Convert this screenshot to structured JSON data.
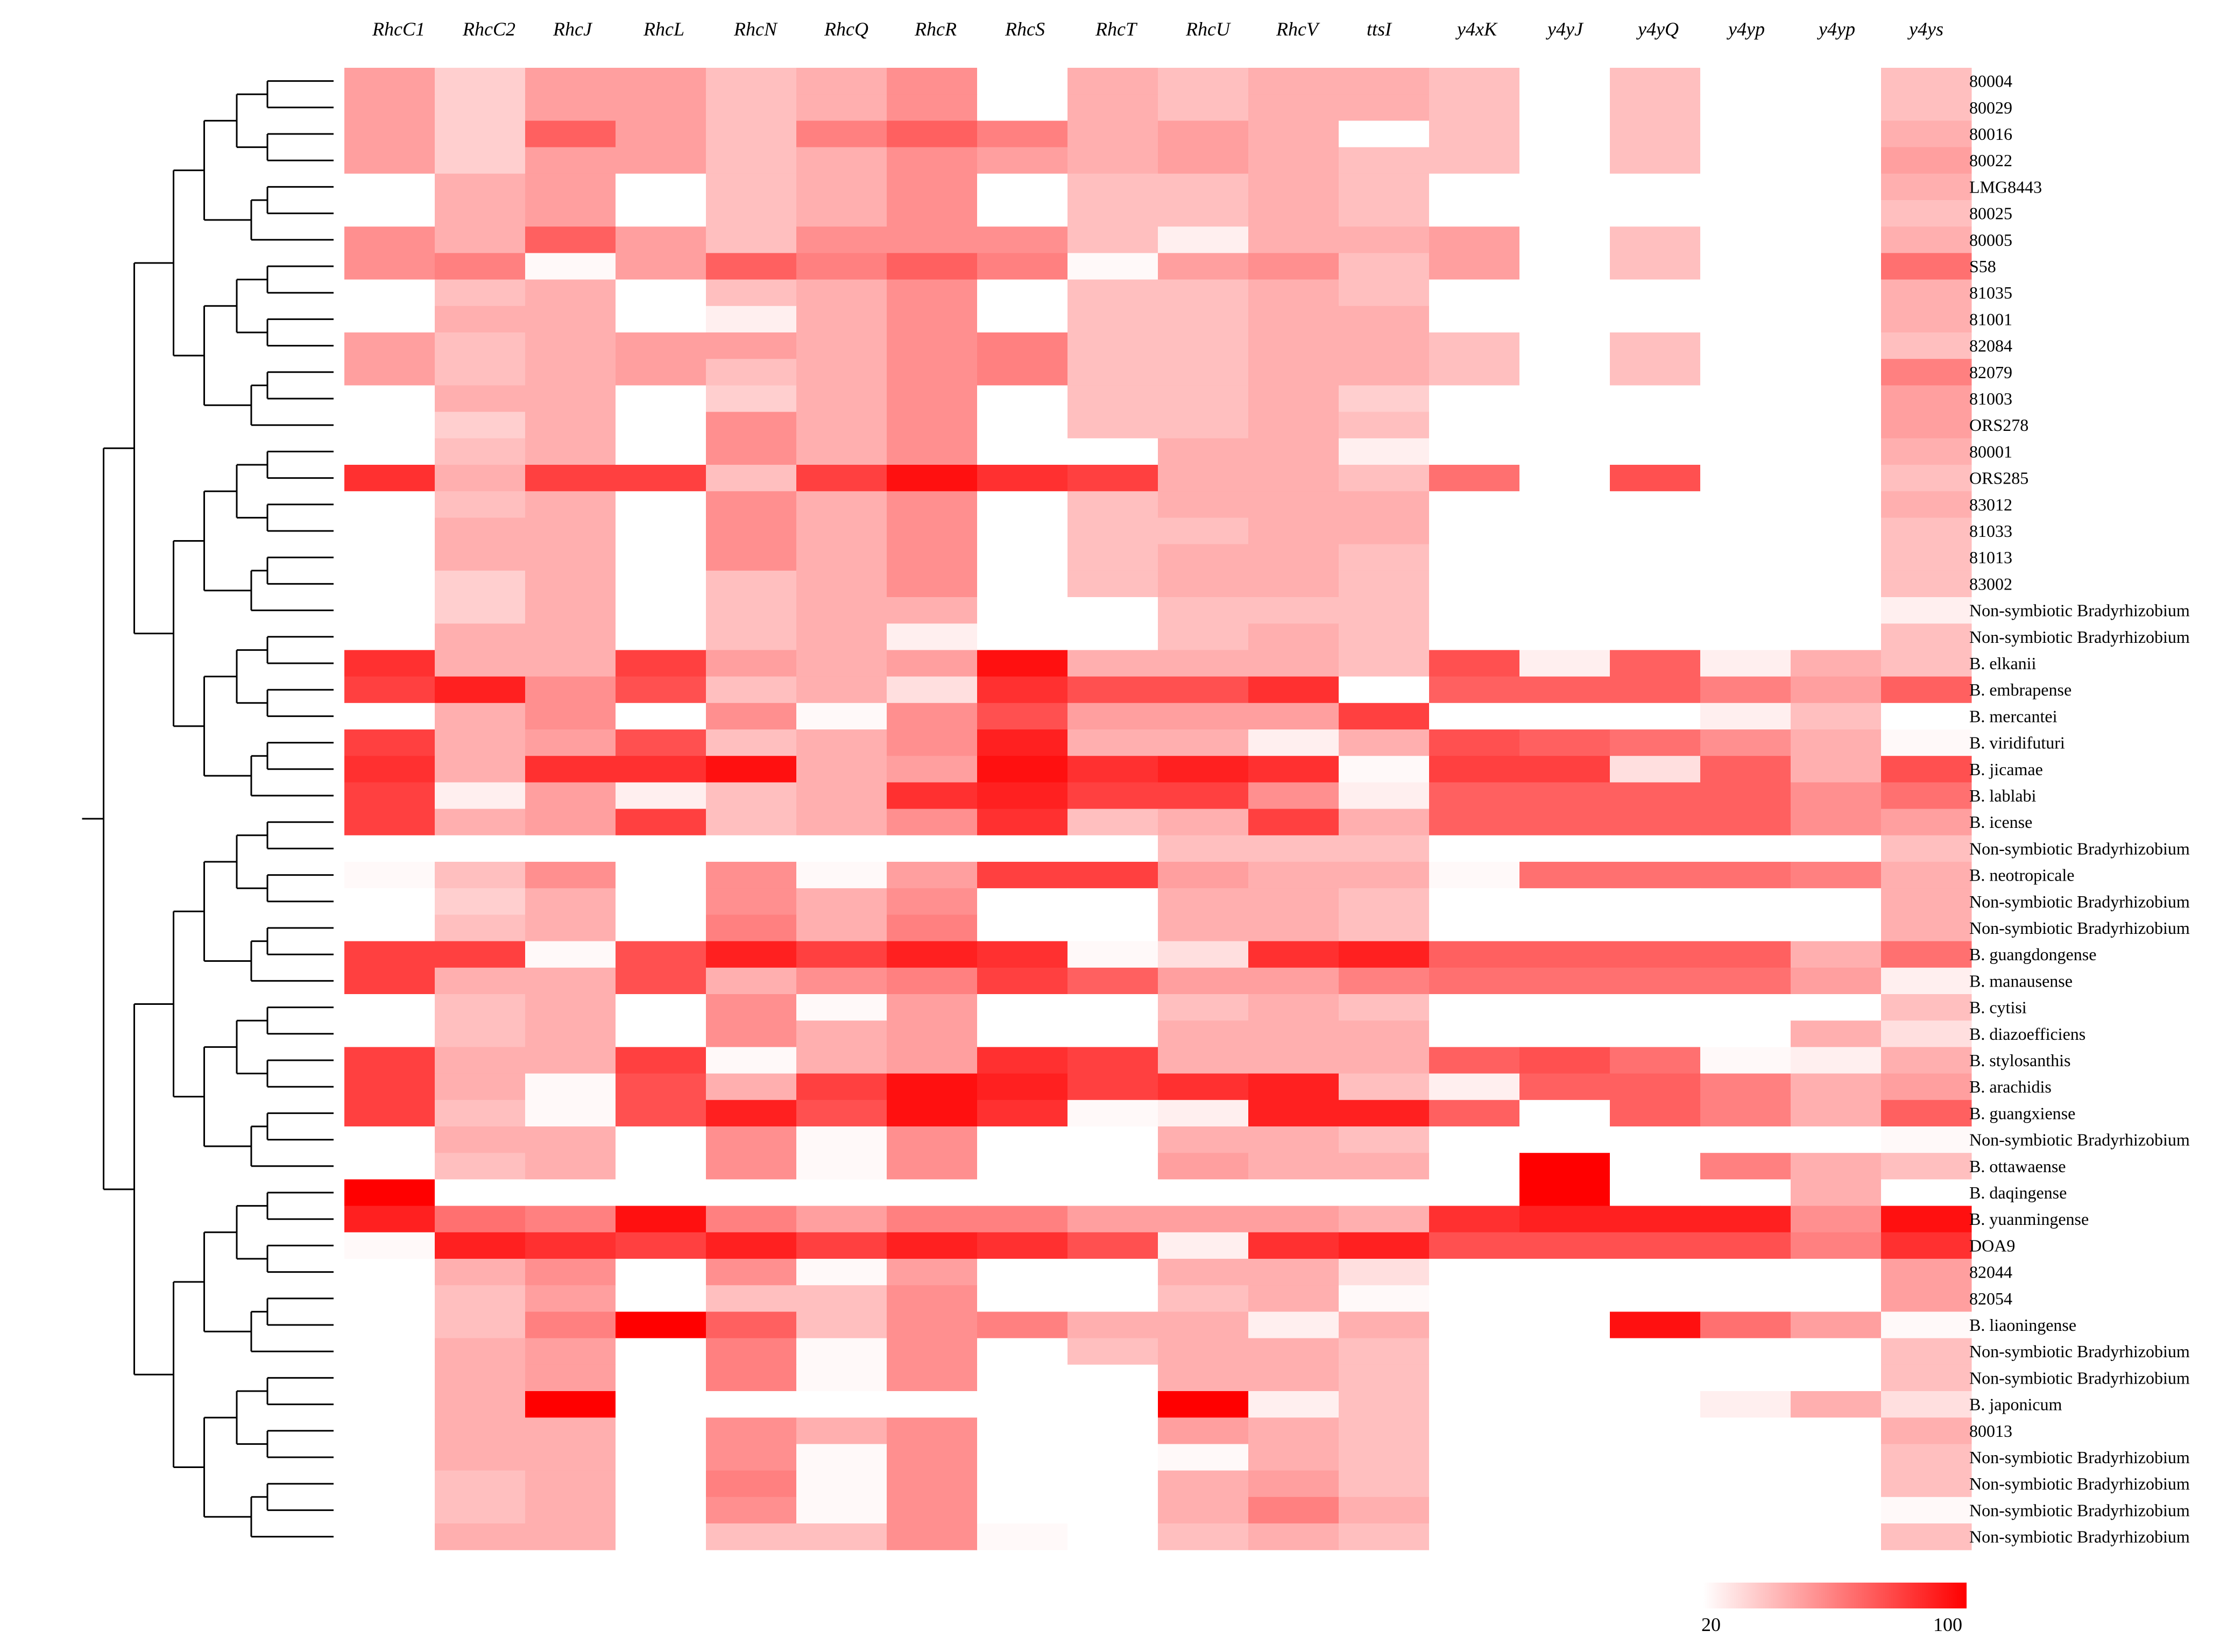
{
  "chart_data": {
    "type": "heatmap",
    "columns": [
      "RhcC1",
      "RhcC2",
      "RhcJ",
      "RhcL",
      "RhcN",
      "RhcQ",
      "RhcR",
      "RhcS",
      "RhcT",
      "RhcU",
      "RhcV",
      "ttsI",
      "y4xK",
      "y4yJ",
      "y4yQ",
      "y4yp",
      "y4yp",
      "y4ys"
    ],
    "rows": [
      "80004",
      "80029",
      "80016",
      "80022",
      "LMG8443",
      "80025",
      "80005",
      "S58",
      "81035",
      "81001",
      "82084",
      "82079",
      "81003",
      "ORS278",
      "80001",
      "ORS285",
      "83012",
      "81033",
      "81013",
      "83002",
      "Non-symbiotic Bradyrhizobium",
      "Non-symbiotic Bradyrhizobium",
      "B. elkanii",
      "B. embrapense",
      "B. mercantei",
      "B. viridifuturi",
      "B. jicamae",
      "B. lablabi",
      "B. icense",
      "Non-symbiotic Bradyrhizobium",
      "B. neotropicale",
      "Non-symbiotic Bradyrhizobium",
      "Non-symbiotic Bradyrhizobium",
      "B. guangdongense",
      "B. manausense",
      "B. cytisi",
      "B. diazoefficiens",
      "B. stylosanthis",
      "B. arachidis",
      "B. guangxiense",
      "Non-symbiotic Bradyrhizobium",
      "B. ottawaense",
      "B. daqingense",
      "B. yuanmingense",
      "DOA9",
      "82044",
      "82054",
      "B. liaoningense",
      "Non-symbiotic Bradyrhizobium",
      "Non-symbiotic Bradyrhizobium",
      "B. japonicum",
      "80013",
      "Non-symbiotic Bradyrhizobium",
      "Non-symbiotic Bradyrhizobium",
      "Non-symbiotic Bradyrhizobium",
      "Non-symbiotic Bradyrhizobium"
    ],
    "values": [
      [
        50,
        35,
        50,
        50,
        40,
        45,
        55,
        20,
        45,
        40,
        45,
        45,
        40,
        null,
        40,
        null,
        null,
        40
      ],
      [
        50,
        35,
        50,
        50,
        40,
        45,
        55,
        20,
        45,
        40,
        45,
        45,
        40,
        null,
        40,
        null,
        null,
        40
      ],
      [
        50,
        35,
        70,
        50,
        40,
        60,
        70,
        60,
        45,
        50,
        45,
        20,
        40,
        null,
        40,
        null,
        null,
        45
      ],
      [
        50,
        35,
        50,
        50,
        40,
        45,
        55,
        50,
        45,
        50,
        45,
        40,
        40,
        null,
        40,
        null,
        null,
        50
      ],
      [
        null,
        45,
        50,
        null,
        40,
        45,
        55,
        null,
        40,
        40,
        45,
        40,
        null,
        null,
        null,
        null,
        null,
        45
      ],
      [
        null,
        45,
        50,
        null,
        40,
        45,
        55,
        null,
        40,
        40,
        45,
        40,
        null,
        null,
        null,
        null,
        null,
        40
      ],
      [
        55,
        45,
        70,
        50,
        40,
        55,
        55,
        55,
        40,
        25,
        45,
        45,
        50,
        null,
        40,
        null,
        null,
        45
      ],
      [
        55,
        60,
        22,
        50,
        70,
        60,
        70,
        60,
        22,
        50,
        55,
        40,
        50,
        null,
        40,
        null,
        null,
        65
      ],
      [
        null,
        40,
        45,
        null,
        40,
        45,
        55,
        null,
        40,
        40,
        45,
        40,
        null,
        null,
        null,
        null,
        null,
        45
      ],
      [
        null,
        45,
        45,
        null,
        25,
        45,
        55,
        null,
        40,
        40,
        45,
        45,
        null,
        null,
        null,
        null,
        null,
        45
      ],
      [
        50,
        40,
        45,
        50,
        50,
        45,
        55,
        60,
        40,
        40,
        45,
        45,
        40,
        null,
        40,
        null,
        null,
        40
      ],
      [
        50,
        40,
        45,
        50,
        40,
        45,
        55,
        60,
        40,
        40,
        45,
        45,
        40,
        null,
        40,
        null,
        null,
        60
      ],
      [
        null,
        45,
        45,
        null,
        35,
        45,
        55,
        null,
        40,
        40,
        45,
        35,
        null,
        null,
        null,
        null,
        null,
        50
      ],
      [
        null,
        35,
        45,
        null,
        55,
        45,
        55,
        null,
        40,
        40,
        45,
        40,
        null,
        null,
        null,
        null,
        null,
        50
      ],
      [
        null,
        40,
        45,
        null,
        55,
        45,
        55,
        null,
        null,
        45,
        45,
        25,
        null,
        null,
        null,
        null,
        null,
        45
      ],
      [
        85,
        45,
        80,
        80,
        40,
        80,
        95,
        85,
        80,
        45,
        45,
        40,
        65,
        null,
        75,
        null,
        null,
        40
      ],
      [
        null,
        40,
        45,
        null,
        55,
        45,
        55,
        null,
        40,
        45,
        45,
        45,
        null,
        null,
        null,
        null,
        null,
        45
      ],
      [
        null,
        45,
        45,
        null,
        55,
        45,
        55,
        null,
        40,
        40,
        45,
        45,
        null,
        null,
        null,
        null,
        null,
        40
      ],
      [
        null,
        45,
        45,
        null,
        55,
        45,
        55,
        null,
        40,
        45,
        45,
        40,
        null,
        null,
        null,
        null,
        null,
        40
      ],
      [
        null,
        35,
        45,
        null,
        40,
        45,
        55,
        null,
        40,
        45,
        45,
        40,
        null,
        null,
        null,
        null,
        null,
        40
      ],
      [
        null,
        35,
        45,
        null,
        40,
        45,
        45,
        null,
        null,
        40,
        40,
        40,
        null,
        null,
        null,
        null,
        null,
        25
      ],
      [
        null,
        45,
        45,
        null,
        40,
        45,
        25,
        null,
        null,
        40,
        45,
        40,
        null,
        null,
        null,
        null,
        null,
        40
      ],
      [
        85,
        45,
        45,
        80,
        50,
        45,
        50,
        95,
        45,
        45,
        45,
        40,
        75,
        25,
        70,
        25,
        45,
        40
      ],
      [
        80,
        90,
        55,
        75,
        40,
        45,
        30,
        85,
        75,
        75,
        85,
        20,
        70,
        70,
        70,
        60,
        50,
        70
      ],
      [
        null,
        45,
        55,
        null,
        55,
        22,
        55,
        75,
        50,
        50,
        50,
        80,
        null,
        null,
        null,
        25,
        40,
        null
      ],
      [
        80,
        45,
        50,
        75,
        40,
        45,
        55,
        90,
        45,
        45,
        25,
        45,
        75,
        70,
        65,
        55,
        45,
        22
      ],
      [
        85,
        45,
        85,
        85,
        95,
        45,
        50,
        95,
        85,
        90,
        85,
        22,
        80,
        80,
        30,
        70,
        45,
        75
      ],
      [
        80,
        25,
        50,
        25,
        40,
        45,
        85,
        90,
        80,
        80,
        55,
        25,
        70,
        70,
        70,
        70,
        55,
        65
      ],
      [
        80,
        45,
        50,
        80,
        40,
        45,
        55,
        85,
        40,
        45,
        80,
        45,
        70,
        70,
        70,
        70,
        55,
        50
      ],
      [
        null,
        null,
        null,
        null,
        null,
        null,
        null,
        null,
        null,
        40,
        40,
        40,
        null,
        null,
        null,
        null,
        null,
        40
      ],
      [
        22,
        40,
        55,
        null,
        55,
        22,
        50,
        80,
        80,
        50,
        45,
        45,
        22,
        65,
        65,
        65,
        60,
        45
      ],
      [
        null,
        35,
        45,
        null,
        55,
        45,
        55,
        null,
        null,
        45,
        45,
        40,
        null,
        null,
        null,
        null,
        null,
        45
      ],
      [
        null,
        40,
        45,
        null,
        60,
        45,
        60,
        null,
        null,
        45,
        45,
        40,
        null,
        null,
        null,
        null,
        null,
        45
      ],
      [
        80,
        80,
        22,
        75,
        90,
        80,
        90,
        85,
        22,
        30,
        85,
        90,
        70,
        70,
        70,
        70,
        45,
        65
      ],
      [
        80,
        45,
        45,
        75,
        45,
        55,
        60,
        80,
        70,
        50,
        50,
        60,
        65,
        65,
        65,
        65,
        50,
        25
      ],
      [
        null,
        40,
        45,
        null,
        55,
        22,
        50,
        null,
        null,
        40,
        45,
        40,
        null,
        null,
        null,
        null,
        null,
        40
      ],
      [
        null,
        40,
        45,
        null,
        55,
        45,
        50,
        null,
        null,
        45,
        45,
        45,
        null,
        null,
        null,
        null,
        45,
        30
      ],
      [
        80,
        45,
        45,
        80,
        22,
        45,
        50,
        85,
        80,
        45,
        45,
        45,
        70,
        75,
        65,
        22,
        25,
        45
      ],
      [
        80,
        45,
        22,
        75,
        45,
        80,
        95,
        90,
        80,
        85,
        90,
        40,
        25,
        70,
        70,
        60,
        45,
        50
      ],
      [
        80,
        40,
        22,
        75,
        90,
        75,
        95,
        85,
        22,
        25,
        90,
        90,
        70,
        null,
        70,
        60,
        45,
        70
      ],
      [
        null,
        45,
        45,
        null,
        55,
        22,
        55,
        null,
        null,
        45,
        45,
        40,
        null,
        null,
        null,
        null,
        null,
        22
      ],
      [
        null,
        40,
        45,
        null,
        55,
        22,
        55,
        null,
        null,
        50,
        45,
        45,
        null,
        100,
        null,
        60,
        45,
        40
      ],
      [
        100,
        null,
        null,
        null,
        null,
        null,
        null,
        null,
        null,
        null,
        null,
        null,
        null,
        100,
        null,
        null,
        45,
        null
      ],
      [
        90,
        65,
        60,
        95,
        60,
        50,
        60,
        60,
        50,
        50,
        50,
        45,
        85,
        90,
        90,
        90,
        55,
        95
      ],
      [
        22,
        90,
        85,
        80,
        90,
        80,
        90,
        85,
        75,
        25,
        85,
        90,
        75,
        75,
        75,
        75,
        60,
        85
      ],
      [
        null,
        45,
        55,
        null,
        55,
        22,
        50,
        null,
        null,
        45,
        45,
        30,
        null,
        null,
        null,
        null,
        null,
        50
      ],
      [
        null,
        40,
        50,
        null,
        40,
        40,
        55,
        null,
        null,
        40,
        45,
        22,
        null,
        null,
        null,
        null,
        null,
        50
      ],
      [
        null,
        40,
        60,
        100,
        70,
        40,
        55,
        60,
        45,
        45,
        25,
        45,
        null,
        null,
        95,
        65,
        50,
        22
      ],
      [
        null,
        45,
        50,
        null,
        60,
        22,
        55,
        null,
        40,
        45,
        45,
        40,
        null,
        null,
        null,
        null,
        null,
        40
      ],
      [
        null,
        45,
        50,
        null,
        60,
        22,
        55,
        null,
        null,
        45,
        45,
        40,
        null,
        null,
        null,
        null,
        null,
        40
      ],
      [
        null,
        45,
        100,
        null,
        null,
        null,
        null,
        null,
        null,
        100,
        25,
        40,
        null,
        null,
        null,
        25,
        45,
        30
      ],
      [
        null,
        45,
        45,
        null,
        55,
        45,
        55,
        null,
        null,
        50,
        45,
        40,
        null,
        null,
        null,
        null,
        null,
        45
      ],
      [
        null,
        45,
        45,
        null,
        55,
        22,
        55,
        null,
        null,
        22,
        45,
        40,
        null,
        null,
        null,
        null,
        null,
        40
      ],
      [
        null,
        40,
        45,
        null,
        60,
        22,
        55,
        null,
        null,
        45,
        50,
        40,
        null,
        null,
        null,
        null,
        null,
        40
      ],
      [
        null,
        40,
        45,
        null,
        55,
        22,
        55,
        null,
        null,
        45,
        60,
        45,
        null,
        null,
        null,
        null,
        null,
        22
      ],
      [
        null,
        45,
        45,
        null,
        40,
        40,
        55,
        22,
        null,
        40,
        45,
        40,
        null,
        null,
        null,
        null,
        null,
        40
      ]
    ],
    "scale": {
      "min": 20,
      "max": 100,
      "min_label": "20",
      "max_label": "100",
      "low_color": "#ffffff",
      "high_color": "#ff0000"
    },
    "missing_color": "#ffffff",
    "dendrogram": "left"
  }
}
